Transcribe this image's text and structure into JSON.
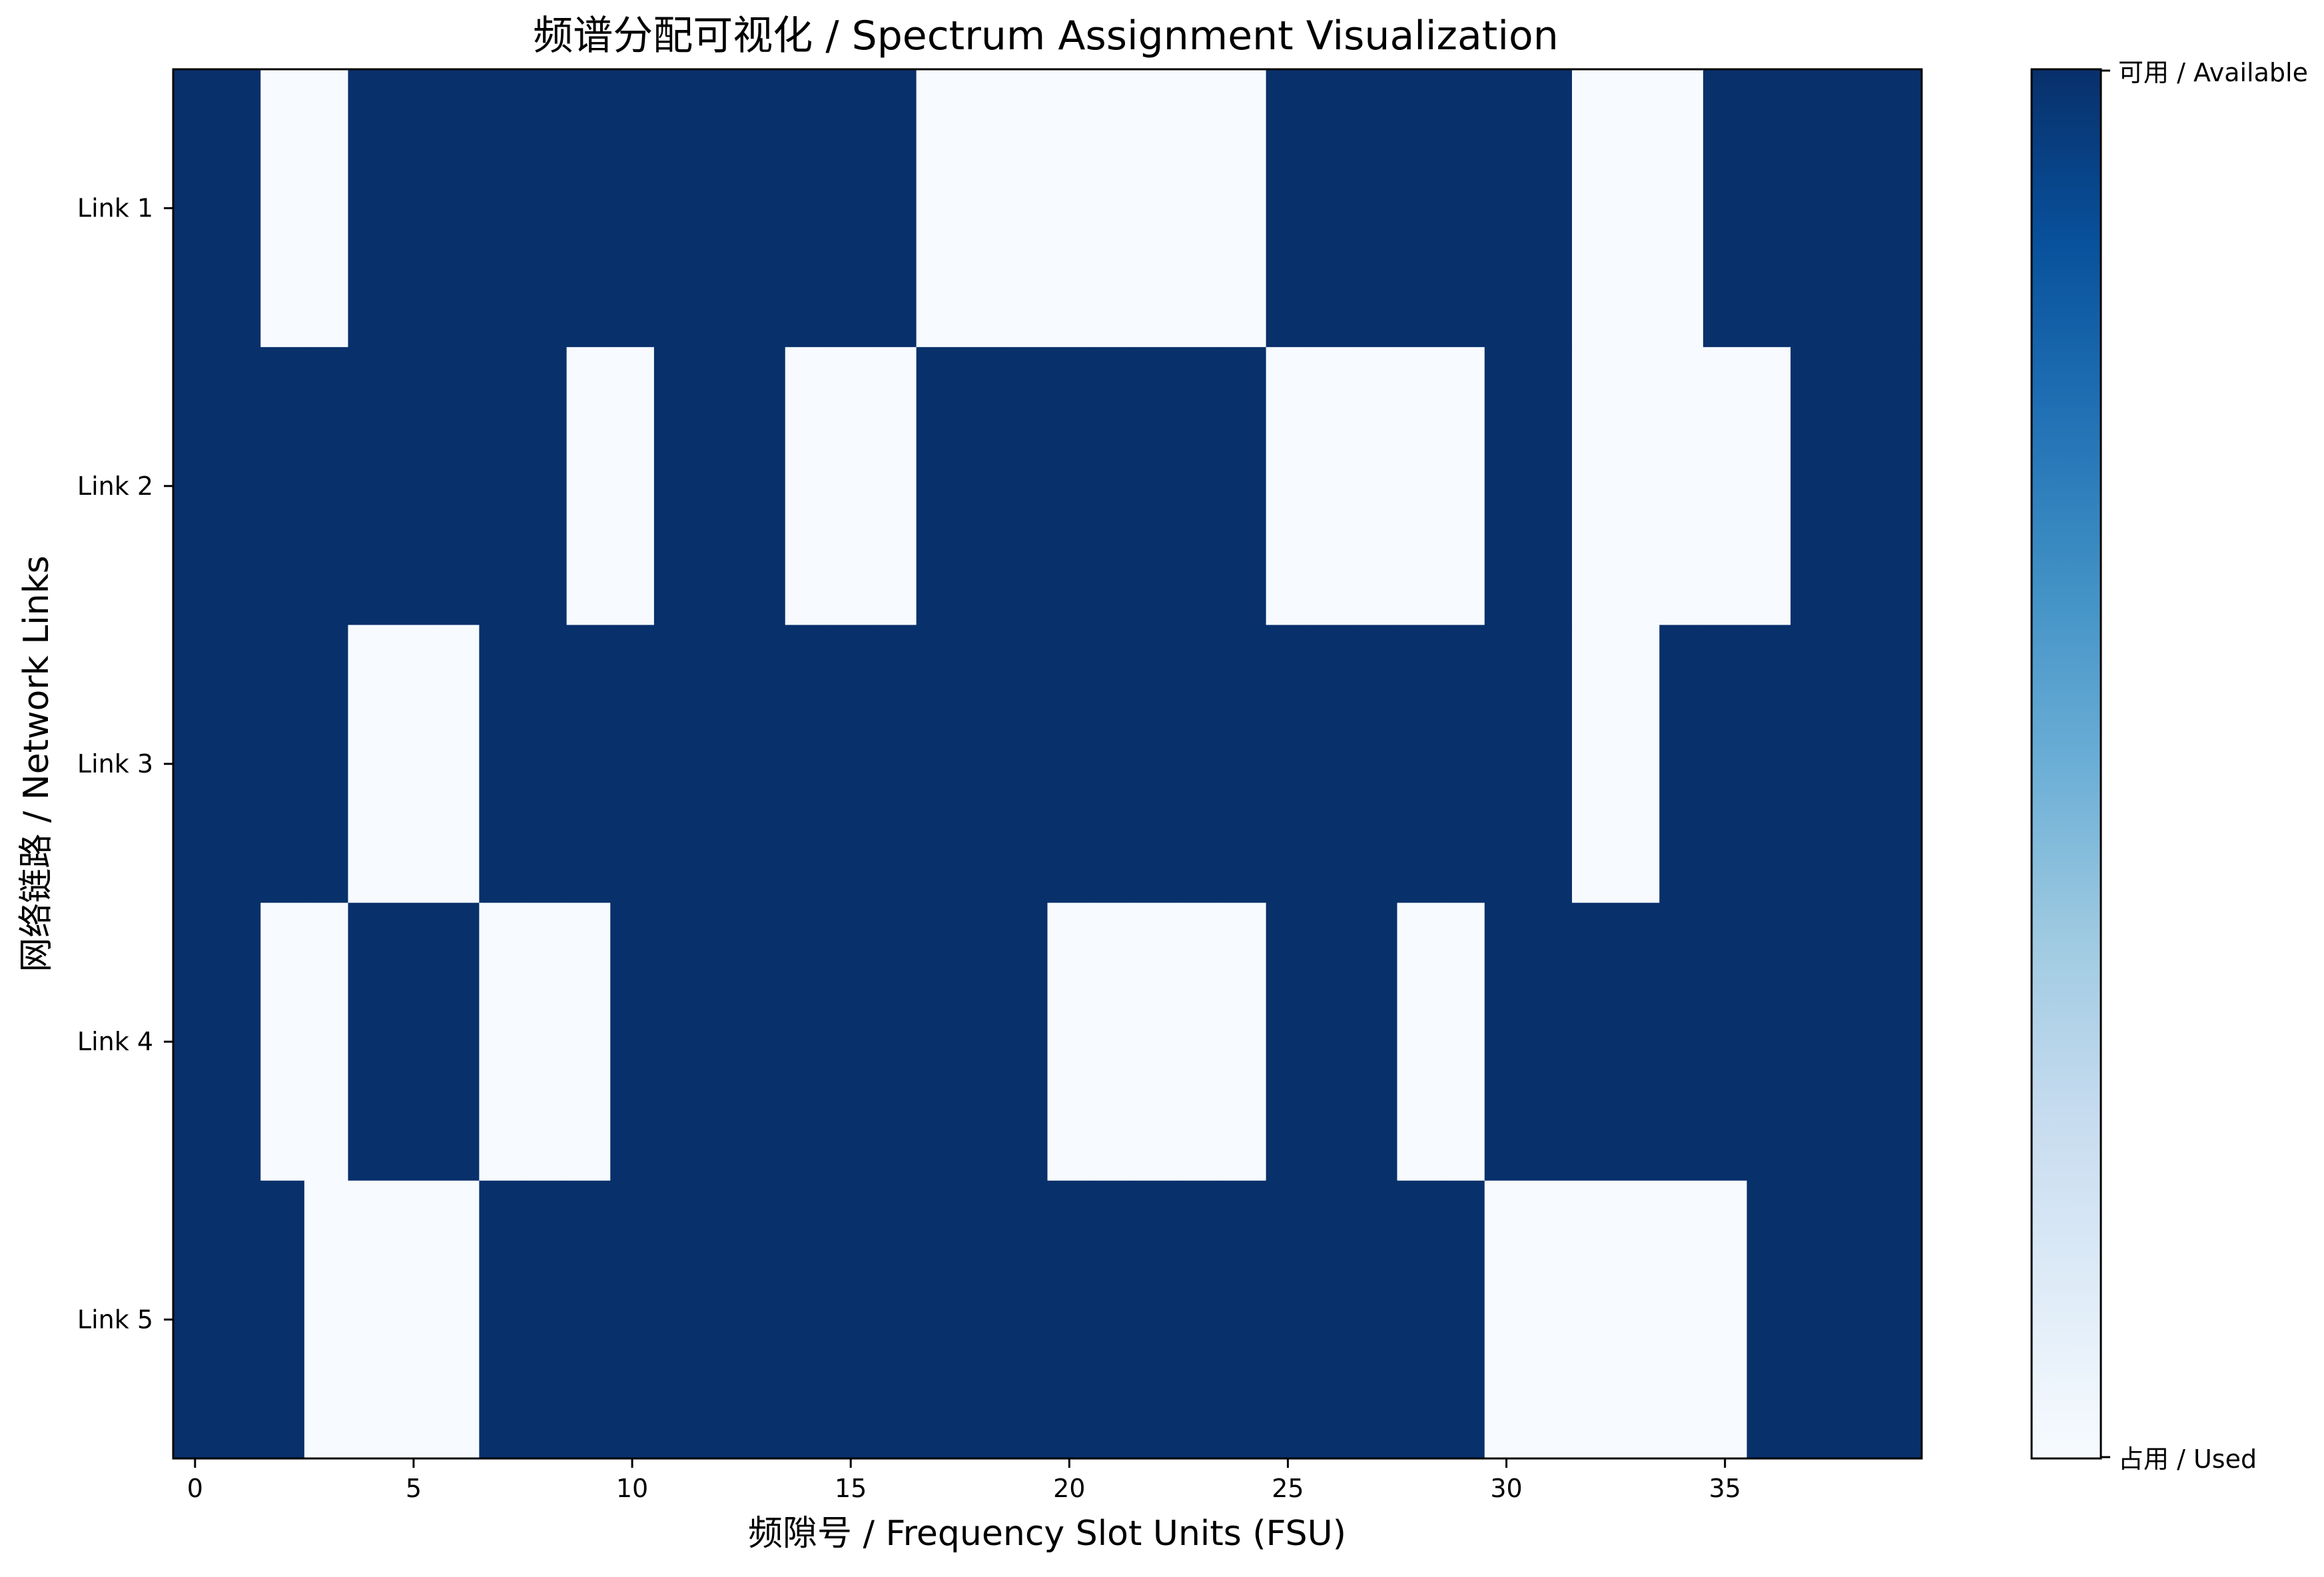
{
  "chart_data": {
    "type": "heatmap",
    "title": "频谱分配可视化 / Spectrum Assignment Visualization",
    "xlabel": "频隙号 / Frequency Slot Units (FSU)",
    "ylabel": "网络链路 / Network Links",
    "x_range": [
      -0.5,
      39.5
    ],
    "x_ticks": [
      0,
      5,
      10,
      15,
      20,
      25,
      30,
      35
    ],
    "rows": [
      "Link 1",
      "Link 2",
      "Link 3",
      "Link 4",
      "Link 5"
    ],
    "num_slots": 40,
    "value_meaning": {
      "1": "可用 / Available",
      "0": "占用 / Used"
    },
    "matrix": [
      [
        1,
        1,
        0,
        0,
        1,
        1,
        1,
        1,
        1,
        1,
        1,
        1,
        1,
        1,
        1,
        1,
        1,
        0,
        0,
        0,
        0,
        0,
        0,
        0,
        0,
        1,
        1,
        1,
        1,
        1,
        1,
        1,
        0,
        0,
        0,
        1,
        1,
        1,
        1,
        1
      ],
      [
        1,
        1,
        1,
        1,
        1,
        1,
        1,
        1,
        1,
        0,
        0,
        1,
        1,
        1,
        0,
        0,
        0,
        1,
        1,
        1,
        1,
        1,
        1,
        1,
        1,
        0,
        0,
        0,
        0,
        0,
        1,
        1,
        0,
        0,
        0,
        0,
        0,
        1,
        1,
        1
      ],
      [
        1,
        1,
        1,
        1,
        0,
        0,
        0,
        1,
        1,
        1,
        1,
        1,
        1,
        1,
        1,
        1,
        1,
        1,
        1,
        1,
        1,
        1,
        1,
        1,
        1,
        1,
        1,
        1,
        1,
        1,
        1,
        1,
        0,
        0,
        1,
        1,
        1,
        1,
        1,
        1
      ],
      [
        1,
        1,
        0,
        0,
        1,
        1,
        1,
        0,
        0,
        0,
        1,
        1,
        1,
        1,
        1,
        1,
        1,
        1,
        1,
        1,
        0,
        0,
        0,
        0,
        0,
        1,
        1,
        1,
        0,
        0,
        1,
        1,
        1,
        1,
        1,
        1,
        1,
        1,
        1,
        1
      ],
      [
        1,
        1,
        1,
        0,
        0,
        0,
        0,
        1,
        1,
        1,
        1,
        1,
        1,
        1,
        1,
        1,
        1,
        1,
        1,
        1,
        1,
        1,
        1,
        1,
        1,
        1,
        1,
        1,
        1,
        1,
        0,
        0,
        0,
        0,
        0,
        0,
        1,
        1,
        1,
        1
      ]
    ],
    "colormap": "Blues",
    "colors": {
      "available": "#08306b",
      "used": "#f7fbff"
    },
    "colorbar": {
      "top_label": "可用 / Available",
      "bottom_label": "占用 / Used",
      "gradient": [
        "#f7fbff",
        "#deebf7",
        "#c6dbef",
        "#9ecae1",
        "#6baed6",
        "#4292c6",
        "#2171b5",
        "#08519c",
        "#08306b"
      ]
    },
    "grid": false,
    "legend": "colorbar-right"
  }
}
